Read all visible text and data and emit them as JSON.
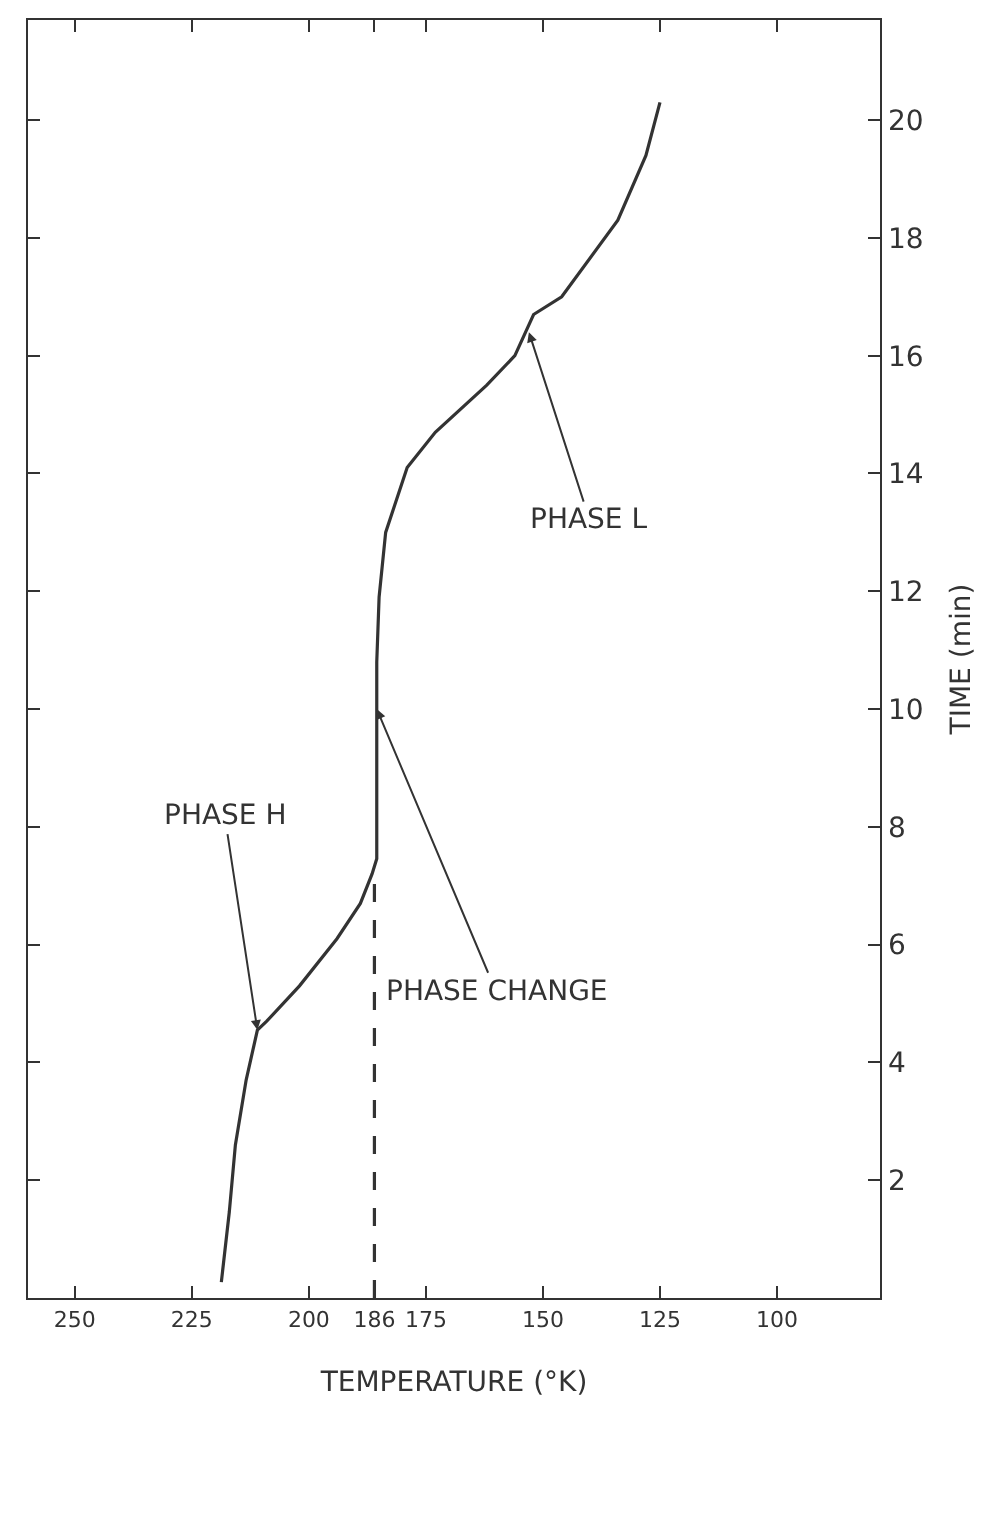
{
  "chart_data": {
    "type": "line",
    "xlabel": "TEMPERATURE (°K)",
    "ylabel": "TIME (min)",
    "xlim": [
      260,
      78
    ],
    "xticks": [
      250,
      225,
      200,
      186,
      175,
      150,
      125,
      100
    ],
    "ylim": [
      0,
      21.7
    ],
    "yticks": [
      2,
      4,
      6,
      8,
      10,
      12,
      14,
      16,
      18,
      20
    ],
    "grid": false,
    "marker": "none",
    "series": [
      {
        "color": "#333333",
        "line_style": "solid",
        "x": [
          218.7,
          217,
          215.7,
          213.4,
          211,
          209,
          202,
          194,
          189,
          186.5,
          185.5,
          185.5,
          185.5,
          185.5,
          185.5,
          185,
          183.6,
          179,
          173,
          162,
          156,
          152,
          146,
          134,
          128,
          125
        ],
        "values": [
          0.27,
          1.46,
          2.6,
          3.7,
          4.55,
          4.7,
          5.3,
          6.1,
          6.7,
          7.2,
          7.46,
          8.5,
          9.15,
          10,
          10.8,
          11.9,
          13.0,
          14.1,
          14.7,
          15.5,
          16.0,
          16.7,
          17.0,
          18.3,
          19.4,
          20.3
        ]
      },
      {
        "color": "#333333",
        "line_style": "dashed",
        "x": [
          186,
          186
        ],
        "values": [
          0,
          7.2
        ]
      }
    ],
    "annotations": [
      {
        "text": "PHASE H",
        "x": 211,
        "y": 4.55
      },
      {
        "text": "PHASE CHANGE",
        "x": 185.5,
        "y": 10
      },
      {
        "text": "PHASE L",
        "x": 153,
        "y": 16.4
      }
    ]
  }
}
